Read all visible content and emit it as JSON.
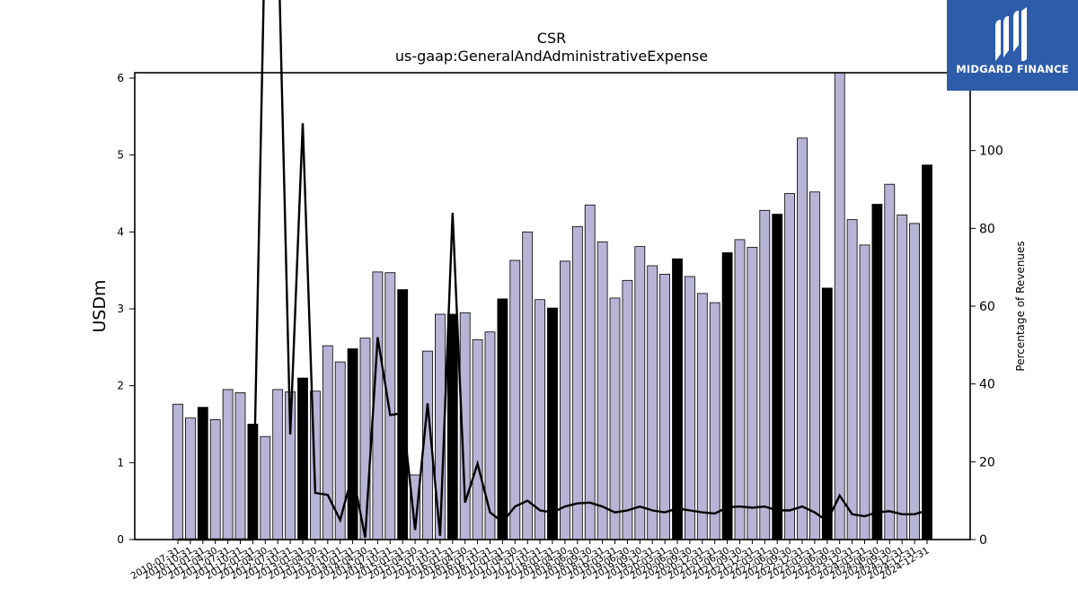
{
  "chart_data": {
    "type": "bar",
    "title": "CSR",
    "subtitle": "us-gaap:GeneralAndAdministrativeExpense",
    "ylabel": "USDm",
    "y2label": "Percentage of Revenues",
    "ylim": [
      0,
      6.07
    ],
    "y2lim": [
      0,
      120
    ],
    "yticks": [
      0,
      1,
      2,
      3,
      4,
      5,
      6
    ],
    "y2ticks": [
      0,
      20,
      40,
      60,
      80,
      100
    ],
    "categories": [
      "2010-07-31",
      "2010-10-31",
      "2011-01-31",
      "2011-04-30",
      "2011-07-31",
      "2011-10-31",
      "2012-01-31",
      "2012-04-30",
      "2012-07-31",
      "2012-10-31",
      "2013-01-31",
      "2013-04-30",
      "2013-07-31",
      "2013-10-31",
      "2014-01-31",
      "2014-04-30",
      "2014-07-31",
      "2014-10-31",
      "2015-01-31",
      "2015-04-30",
      "2015-07-31",
      "2015-10-31",
      "2016-01-31",
      "2016-04-30",
      "2016-07-31",
      "2016-10-31",
      "2017-01-31",
      "2017-04-30",
      "2017-07-31",
      "2017-10-31",
      "2018-01-31",
      "2018-04-30",
      "2018-06-30",
      "2018-09-30",
      "2018-12-31",
      "2019-03-31",
      "2019-06-30",
      "2019-09-30",
      "2019-12-31",
      "2020-03-31",
      "2020-06-30",
      "2020-09-30",
      "2020-12-31",
      "2021-03-31",
      "2021-06-30",
      "2021-09-30",
      "2021-12-31",
      "2022-03-31",
      "2022-06-30",
      "2022-09-30",
      "2022-12-31",
      "2023-03-31",
      "2023-06-30",
      "2023-09-30",
      "2023-12-31",
      "2024-03-31",
      "2024-06-30",
      "2024-09-30",
      "2024-12-31",
      "2024-12-31b",
      "2024-12-31c"
    ],
    "tick_labels": [
      "2010-07-31",
      "2010-10-31",
      "2011-01-31",
      "2011-04-30",
      "2011-07-31",
      "2011-10-31",
      "2012-01-31",
      "2012-04-30",
      "2012-07-31",
      "2012-10-31",
      "2013-01-31",
      "2013-04-30",
      "2013-07-31",
      "2013-10-31",
      "2014-01-31",
      "2014-04-30",
      "2014-07-31",
      "2014-10-31",
      "2015-01-31",
      "2015-04-30",
      "2015-07-31",
      "2015-10-31",
      "2016-01-31",
      "2016-04-30",
      "2016-07-31",
      "2016-10-31",
      "2017-01-31",
      "2017-04-30",
      "2017-07-31",
      "2017-10-31",
      "2018-01-31",
      "2018-04-30",
      "2018-06-30",
      "2018-09-30",
      "2018-12-31",
      "2019-03-31",
      "2019-06-30",
      "2019-09-30",
      "2019-12-31",
      "2020-03-31",
      "2020-06-30",
      "2020-09-30",
      "2020-12-31",
      "2021-03-31",
      "2021-06-30",
      "2021-09-30",
      "2021-12-31",
      "2022-03-31",
      "2022-06-30",
      "2022-09-30",
      "2022-12-31",
      "2023-03-31",
      "2023-06-30",
      "2023-09-30",
      "2023-12-31",
      "2024-03-31",
      "2024-06-30",
      "2024-09-30",
      "2024-12-31",
      "2024-12-31",
      "2024-12-31"
    ],
    "bar_values": [
      1.76,
      1.58,
      1.72,
      1.56,
      1.95,
      1.91,
      1.5,
      1.34,
      1.95,
      1.92,
      2.1,
      1.93,
      2.52,
      2.31,
      2.48,
      2.62,
      3.48,
      3.47,
      3.25,
      0.84,
      2.45,
      2.93,
      2.93,
      2.95,
      2.6,
      2.7,
      3.13,
      3.63,
      4.0,
      3.12,
      3.01,
      3.62,
      4.07,
      4.35,
      3.87,
      3.14,
      3.37,
      3.81,
      3.56,
      3.45,
      3.65,
      3.42,
      3.2,
      3.08,
      3.73,
      3.9,
      3.8,
      4.28,
      4.23,
      4.5,
      5.22,
      4.52,
      3.27,
      6.1,
      4.16,
      3.83,
      4.36,
      4.62,
      4.22,
      4.11,
      4.87
    ],
    "bar_highlight": [
      false,
      false,
      true,
      false,
      false,
      false,
      true,
      false,
      false,
      false,
      true,
      false,
      false,
      false,
      true,
      false,
      false,
      false,
      true,
      false,
      false,
      false,
      true,
      false,
      false,
      false,
      true,
      false,
      false,
      false,
      true,
      false,
      false,
      false,
      false,
      false,
      false,
      false,
      false,
      false,
      true,
      false,
      false,
      false,
      true,
      false,
      false,
      false,
      true,
      false,
      false,
      false,
      true,
      false,
      false,
      false,
      true,
      false,
      false,
      false,
      true
    ],
    "pct_values": [
      0,
      0,
      0,
      0,
      0,
      0,
      0,
      160,
      160,
      27,
      107,
      12,
      11.5,
      5,
      17,
      0.5,
      52,
      32,
      32.5,
      2.5,
      35,
      1,
      84,
      9.5,
      19.5,
      7,
      4.5,
      8.5,
      10,
      7.5,
      7,
      8.5,
      9.3,
      9.5,
      8.5,
      7,
      7.5,
      8.5,
      7.5,
      7,
      8,
      7.5,
      7,
      6.7,
      8.3,
      8.5,
      8.2,
      8.5,
      7.5,
      7.5,
      8.5,
      7,
      4.8,
      11.3,
      6.5,
      6,
      7,
      7.3,
      6.5,
      6.5,
      7.5
    ],
    "colors": {
      "bar": "#b7b4d5",
      "highlight": "#000000",
      "line": "#000000"
    }
  },
  "logo": {
    "text": "MIDGARD FINANCE",
    "background": "#2d5cab"
  }
}
